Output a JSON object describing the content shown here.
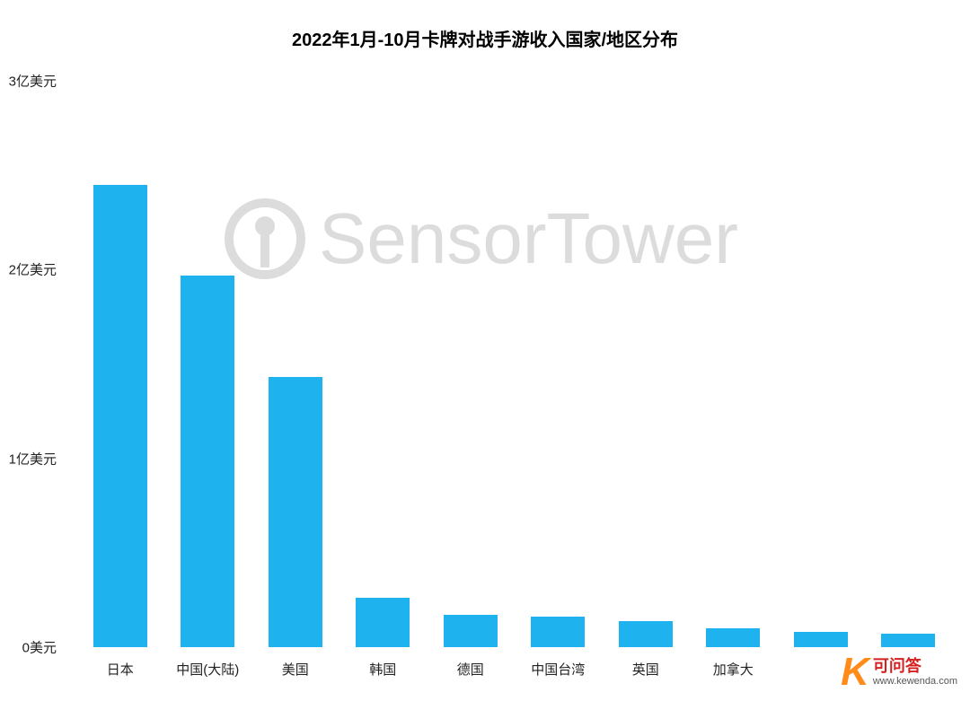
{
  "chart": {
    "type": "bar",
    "title": "2022年1月-10月卡牌对战手游收入国家/地区分布",
    "title_fontsize": 20,
    "title_color": "#000000",
    "bar_color": "#1eb2ef",
    "background_color": "#ffffff",
    "watermark_text": "SensorTower",
    "watermark_color": "#dcdcdc",
    "y_axis": {
      "min": 0,
      "max": 3,
      "unit": "亿美元",
      "ticks": [
        {
          "value": 0,
          "label": "0美元"
        },
        {
          "value": 1,
          "label": "1亿美元"
        },
        {
          "value": 2,
          "label": "2亿美元"
        },
        {
          "value": 3,
          "label": "3亿美元"
        }
      ],
      "label_fontsize": 15,
      "label_color": "#222222"
    },
    "categories": [
      "日本",
      "中国(大陆)",
      "美国",
      "韩国",
      "德国",
      "中国台湾",
      "英国",
      "加拿大",
      "",
      ""
    ],
    "values": [
      2.45,
      1.97,
      1.43,
      0.26,
      0.17,
      0.16,
      0.14,
      0.1,
      0.08,
      0.07
    ],
    "x_label_fontsize": 15,
    "x_label_color": "#222222",
    "bar_width_ratio": 0.62
  },
  "corner_logo": {
    "k": "K",
    "cn": "可问答",
    "url": "www.kewenda.com",
    "k_color": "#ff8c1a",
    "cn_color": "#d62020"
  }
}
